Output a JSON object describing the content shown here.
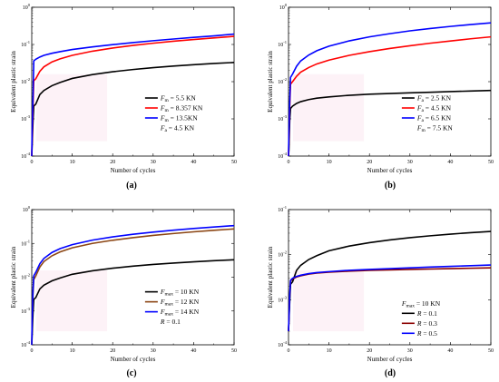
{
  "chart_data": [
    {
      "panel": "(a)",
      "type": "line",
      "xlabel": "Number of cycles",
      "ylabel": "Equivalent plastic strain",
      "xlim": [
        0,
        50
      ],
      "xticks": [
        0,
        10,
        20,
        30,
        40,
        50
      ],
      "xtick_labels": [
        "0",
        "10",
        "20",
        "30",
        "40",
        "50"
      ],
      "yscale": "log",
      "ylim": [
        0.0001,
        1
      ],
      "ytick_exps": [
        -4,
        -3,
        -2,
        -1,
        0
      ],
      "legend_position": "bottom-right",
      "legend_note": {
        "symbol": "F",
        "sub": "a",
        "text": " = 4.5 KN"
      },
      "series": [
        {
          "sym": "F",
          "sub": "m",
          "name_tail": " = 5.5 KN",
          "color": "#000000",
          "points": [
            [
              0,
              0.0001
            ],
            [
              0.1,
              0.0002
            ],
            [
              0.3,
              0.0008
            ],
            [
              0.5,
              0.0022
            ],
            [
              1,
              0.0025
            ],
            [
              2,
              0.0045
            ],
            [
              3,
              0.0058
            ],
            [
              5,
              0.0078
            ],
            [
              7,
              0.0095
            ],
            [
              10,
              0.0122
            ],
            [
              15,
              0.0155
            ],
            [
              20,
              0.0185
            ],
            [
              25,
              0.0212
            ],
            [
              30,
              0.0238
            ],
            [
              35,
              0.0262
            ],
            [
              40,
              0.0285
            ],
            [
              45,
              0.0308
            ],
            [
              50,
              0.0328
            ]
          ]
        },
        {
          "sym": "F",
          "sub": "m",
          "name_tail": " = 8.357 KN",
          "color": "#ff0000",
          "points": [
            [
              0,
              0.0001
            ],
            [
              0.1,
              0.0003
            ],
            [
              0.3,
              0.002
            ],
            [
              0.5,
              0.0105
            ],
            [
              1,
              0.012
            ],
            [
              2,
              0.019
            ],
            [
              3,
              0.025
            ],
            [
              5,
              0.034
            ],
            [
              7,
              0.041
            ],
            [
              10,
              0.051
            ],
            [
              15,
              0.066
            ],
            [
              20,
              0.08
            ],
            [
              25,
              0.094
            ],
            [
              30,
              0.108
            ],
            [
              35,
              0.122
            ],
            [
              40,
              0.136
            ],
            [
              45,
              0.15
            ],
            [
              50,
              0.165
            ]
          ]
        },
        {
          "sym": "F",
          "sub": "m",
          "name_tail": " = 13.5KN",
          "color": "#0000ff",
          "points": [
            [
              0,
              0.0001
            ],
            [
              0.1,
              0.0005
            ],
            [
              0.3,
              0.0035
            ],
            [
              0.5,
              0.036
            ],
            [
              1,
              0.04
            ],
            [
              2,
              0.046
            ],
            [
              3,
              0.051
            ],
            [
              5,
              0.058
            ],
            [
              7,
              0.064
            ],
            [
              10,
              0.073
            ],
            [
              15,
              0.086
            ],
            [
              20,
              0.099
            ],
            [
              25,
              0.112
            ],
            [
              30,
              0.126
            ],
            [
              35,
              0.14
            ],
            [
              40,
              0.155
            ],
            [
              45,
              0.17
            ],
            [
              50,
              0.19
            ]
          ]
        }
      ]
    },
    {
      "panel": "(b)",
      "type": "line",
      "xlabel": "Number of cycles",
      "ylabel": "Equivalent plastic strain",
      "xlim": [
        0,
        50
      ],
      "xticks": [
        0,
        10,
        20,
        30,
        40,
        50
      ],
      "xtick_labels": [
        "0",
        "10",
        "20",
        "30",
        "40",
        "50"
      ],
      "yscale": "log",
      "ylim": [
        0.0001,
        1
      ],
      "ytick_exps": [
        -4,
        -3,
        -2,
        -1,
        0
      ],
      "legend_position": "bottom-right",
      "legend_note": {
        "symbol": "F",
        "sub": "m",
        "text": " = 7.5 KN"
      },
      "series": [
        {
          "sym": "F",
          "sub": "a",
          "name_tail": " = 2.5 KN",
          "color": "#000000",
          "points": [
            [
              0,
              0.0001
            ],
            [
              0.1,
              0.00015
            ],
            [
              0.3,
              0.0009
            ],
            [
              0.5,
              0.0019
            ],
            [
              1,
              0.0022
            ],
            [
              2,
              0.0026
            ],
            [
              3,
              0.0029
            ],
            [
              5,
              0.0033
            ],
            [
              7,
              0.0036
            ],
            [
              10,
              0.0039
            ],
            [
              15,
              0.0043
            ],
            [
              20,
              0.0046
            ],
            [
              25,
              0.0048
            ],
            [
              30,
              0.005
            ],
            [
              35,
              0.0052
            ],
            [
              40,
              0.0054
            ],
            [
              45,
              0.0056
            ],
            [
              50,
              0.0058
            ]
          ]
        },
        {
          "sym": "F",
          "sub": "a",
          "name_tail": " = 4.5 KN",
          "color": "#ff0000",
          "points": [
            [
              0,
              0.0001
            ],
            [
              0.1,
              0.0003
            ],
            [
              0.3,
              0.002
            ],
            [
              0.5,
              0.0085
            ],
            [
              1,
              0.01
            ],
            [
              2,
              0.014
            ],
            [
              3,
              0.018
            ],
            [
              5,
              0.024
            ],
            [
              7,
              0.03
            ],
            [
              10,
              0.038
            ],
            [
              15,
              0.051
            ],
            [
              20,
              0.064
            ],
            [
              25,
              0.078
            ],
            [
              30,
              0.092
            ],
            [
              35,
              0.108
            ],
            [
              40,
              0.124
            ],
            [
              45,
              0.142
            ],
            [
              50,
              0.16
            ]
          ]
        },
        {
          "sym": "F",
          "sub": "a",
          "name_tail": " = 6.5 KN",
          "color": "#0000ff",
          "points": [
            [
              0,
              0.0001
            ],
            [
              0.1,
              0.0004
            ],
            [
              0.3,
              0.003
            ],
            [
              0.5,
              0.013
            ],
            [
              1,
              0.016
            ],
            [
              2,
              0.026
            ],
            [
              3,
              0.036
            ],
            [
              5,
              0.052
            ],
            [
              7,
              0.068
            ],
            [
              10,
              0.09
            ],
            [
              15,
              0.125
            ],
            [
              20,
              0.16
            ],
            [
              25,
              0.195
            ],
            [
              30,
              0.232
            ],
            [
              35,
              0.268
            ],
            [
              40,
              0.305
            ],
            [
              45,
              0.342
            ],
            [
              50,
              0.38
            ]
          ]
        }
      ]
    },
    {
      "panel": "(c)",
      "type": "line",
      "xlabel": "Number of cycles",
      "ylabel": "Equivalent plastic strain",
      "xlim": [
        0,
        50
      ],
      "xticks": [
        0,
        10,
        20,
        30,
        40,
        50
      ],
      "xtick_labels": [
        "0",
        "10",
        "20",
        "30",
        "40",
        "50"
      ],
      "yscale": "log",
      "ylim": [
        0.0001,
        1
      ],
      "ytick_exps": [
        -4,
        -3,
        -2,
        -1,
        0
      ],
      "legend_position": "bottom-right",
      "legend_note": {
        "symbol": "R",
        "sub": "",
        "text": " = 0.1"
      },
      "series": [
        {
          "sym": "F",
          "sub": "max",
          "name_tail": " = 10 KN",
          "color": "#000000",
          "points": [
            [
              0,
              0.0001
            ],
            [
              0.1,
              0.0002
            ],
            [
              0.3,
              0.0008
            ],
            [
              0.5,
              0.0022
            ],
            [
              1,
              0.0025
            ],
            [
              2,
              0.0045
            ],
            [
              3,
              0.0058
            ],
            [
              5,
              0.0078
            ],
            [
              7,
              0.0095
            ],
            [
              10,
              0.0122
            ],
            [
              15,
              0.0155
            ],
            [
              20,
              0.0185
            ],
            [
              25,
              0.0212
            ],
            [
              30,
              0.0238
            ],
            [
              35,
              0.0262
            ],
            [
              40,
              0.0285
            ],
            [
              45,
              0.0308
            ],
            [
              50,
              0.0328
            ]
          ]
        },
        {
          "sym": "F",
          "sub": "max",
          "name_tail": " = 12 KN",
          "color": "#8b4513",
          "points": [
            [
              0,
              0.0001
            ],
            [
              0.1,
              0.0004
            ],
            [
              0.3,
              0.003
            ],
            [
              0.5,
              0.0085
            ],
            [
              1,
              0.011
            ],
            [
              2,
              0.02
            ],
            [
              3,
              0.029
            ],
            [
              5,
              0.043
            ],
            [
              7,
              0.056
            ],
            [
              10,
              0.074
            ],
            [
              15,
              0.1
            ],
            [
              20,
              0.124
            ],
            [
              25,
              0.148
            ],
            [
              30,
              0.172
            ],
            [
              35,
              0.196
            ],
            [
              40,
              0.22
            ],
            [
              45,
              0.244
            ],
            [
              50,
              0.268
            ]
          ]
        },
        {
          "sym": "F",
          "sub": "max",
          "name_tail": " = 14 KN",
          "color": "#0000ff",
          "points": [
            [
              0,
              0.0001
            ],
            [
              0.1,
              0.0005
            ],
            [
              0.3,
              0.004
            ],
            [
              0.5,
              0.011
            ],
            [
              1,
              0.014
            ],
            [
              2,
              0.025
            ],
            [
              3,
              0.036
            ],
            [
              5,
              0.054
            ],
            [
              7,
              0.07
            ],
            [
              10,
              0.092
            ],
            [
              15,
              0.125
            ],
            [
              20,
              0.156
            ],
            [
              25,
              0.186
            ],
            [
              30,
              0.216
            ],
            [
              35,
              0.246
            ],
            [
              40,
              0.276
            ],
            [
              45,
              0.306
            ],
            [
              50,
              0.336
            ]
          ]
        }
      ]
    },
    {
      "panel": "(d)",
      "type": "line",
      "xlabel": "Number of cycles",
      "ylabel": "Equivalent plastic strain",
      "xlim": [
        0,
        50
      ],
      "xticks": [
        0,
        10,
        20,
        30,
        40,
        50
      ],
      "xtick_labels": [
        "0",
        "10",
        "20",
        "30",
        "40",
        "50"
      ],
      "yscale": "log",
      "ylim": [
        0.0001,
        0.1
      ],
      "ytick_exps": [
        -4,
        -3,
        -2,
        -1
      ],
      "legend_position": "bottom-right",
      "legend_header": {
        "symbol": "F",
        "sub": "max",
        "text": " = 10 KN"
      },
      "series": [
        {
          "sym": "R",
          "sub": "",
          "name_tail": " = 0.1",
          "color": "#000000",
          "points": [
            [
              0,
              0.0002
            ],
            [
              0.3,
              0.0009
            ],
            [
              0.5,
              0.0022
            ],
            [
              1,
              0.0025
            ],
            [
              2,
              0.0045
            ],
            [
              3,
              0.0058
            ],
            [
              5,
              0.0078
            ],
            [
              7,
              0.0095
            ],
            [
              10,
              0.0122
            ],
            [
              15,
              0.0155
            ],
            [
              20,
              0.0185
            ],
            [
              25,
              0.0212
            ],
            [
              30,
              0.0238
            ],
            [
              35,
              0.0262
            ],
            [
              40,
              0.0285
            ],
            [
              45,
              0.0308
            ],
            [
              50,
              0.0328
            ]
          ]
        },
        {
          "sym": "R",
          "sub": "",
          "name_tail": " = 0.3",
          "color": "#8b0000",
          "points": [
            [
              0,
              0.0002
            ],
            [
              0.3,
              0.0012
            ],
            [
              0.5,
              0.0026
            ],
            [
              1,
              0.0029
            ],
            [
              2,
              0.0032
            ],
            [
              3,
              0.0034
            ],
            [
              5,
              0.0037
            ],
            [
              7,
              0.0039
            ],
            [
              10,
              0.0041
            ],
            [
              15,
              0.0043
            ],
            [
              20,
              0.0045
            ],
            [
              25,
              0.0046
            ],
            [
              30,
              0.0047
            ],
            [
              35,
              0.0048
            ],
            [
              40,
              0.0049
            ],
            [
              45,
              0.005
            ],
            [
              50,
              0.0051
            ]
          ]
        },
        {
          "sym": "R",
          "sub": "",
          "name_tail": " = 0.5",
          "color": "#0000ff",
          "points": [
            [
              0,
              0.0002
            ],
            [
              0.3,
              0.0013
            ],
            [
              0.5,
              0.0027
            ],
            [
              1,
              0.003
            ],
            [
              2,
              0.0033
            ],
            [
              3,
              0.0035
            ],
            [
              5,
              0.0038
            ],
            [
              7,
              0.004
            ],
            [
              10,
              0.0042
            ],
            [
              15,
              0.0045
            ],
            [
              20,
              0.0047
            ],
            [
              25,
              0.0049
            ],
            [
              30,
              0.0051
            ],
            [
              35,
              0.0053
            ],
            [
              40,
              0.0055
            ],
            [
              45,
              0.0057
            ],
            [
              50,
              0.0059
            ]
          ]
        }
      ]
    }
  ]
}
